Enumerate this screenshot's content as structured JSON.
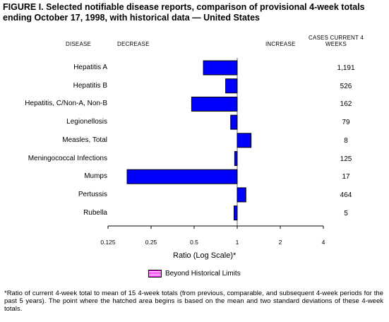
{
  "title": "FIGURE I. Selected notifiable disease reports, comparison of provisional 4-week totals ending October 17, 1998, with historical data — United States",
  "headers": {
    "disease": "DISEASE",
    "decrease": "DECREASE",
    "increase": "INCREASE",
    "cases": "CASES CURRENT 4 WEEKS"
  },
  "chart_data": {
    "type": "bar",
    "orientation": "horizontal",
    "x_scale": "log2",
    "xlim": [
      0.125,
      4
    ],
    "xlabel": "Ratio (Log Scale)*",
    "x_ticks": [
      0.125,
      0.25,
      0.5,
      1,
      2,
      4
    ],
    "x_tick_labels": [
      "0.125",
      "0.25",
      "0.5",
      "1",
      "2",
      "4"
    ],
    "baseline": 1,
    "categories": [
      "Hepatitis A",
      "Hepatitis B",
      "Hepatitis, C/Non-A, Non-B",
      "Legionellosis",
      "Measles, Total",
      "Meningococcal Infections",
      "Mumps",
      "Pertussis",
      "Rubella"
    ],
    "values": [
      0.58,
      0.83,
      0.48,
      0.9,
      1.25,
      0.96,
      0.17,
      1.15,
      0.95
    ],
    "cases_current_4_weeks": [
      "1,191",
      "526",
      "162",
      "79",
      "8",
      "125",
      "17",
      "464",
      "5"
    ],
    "bar_color": "#0000ff",
    "legend": [
      {
        "label": "Beyond Historical Limits",
        "color": "#ff00ff"
      }
    ]
  },
  "footnote": "*Ratio of current 4-week total to mean of 15 4-week totals (from previous, comparable, and subsequent 4-week periods for the past 5 years). The point where the hatched area begins is based on the mean and two standard deviations of these 4-week totals."
}
